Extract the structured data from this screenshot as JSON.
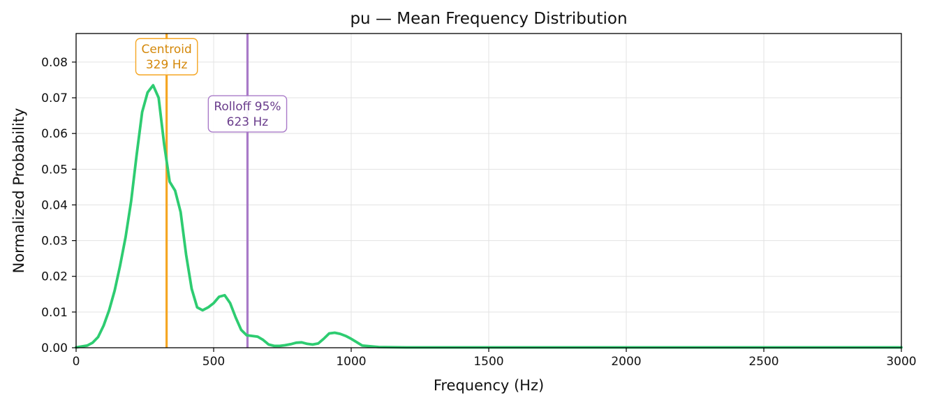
{
  "chart_data": {
    "type": "line",
    "title": "pu  —  Mean Frequency Distribution",
    "xlabel": "Frequency (Hz)",
    "ylabel": "Normalized Probability",
    "xlim": [
      0,
      3000
    ],
    "ylim": [
      0,
      0.088
    ],
    "grid": true,
    "x_ticks": [
      0,
      500,
      1000,
      1500,
      2000,
      2500,
      3000
    ],
    "x_tick_labels": [
      "0",
      "500",
      "1000",
      "1500",
      "2000",
      "2500",
      "3000"
    ],
    "y_ticks": [
      0,
      0.01,
      0.02,
      0.03,
      0.04,
      0.05,
      0.06,
      0.07,
      0.08
    ],
    "y_tick_labels": [
      "0.00",
      "0.01",
      "0.02",
      "0.03",
      "0.04",
      "0.05",
      "0.06",
      "0.07",
      "0.08"
    ],
    "series": [
      {
        "color": "#2ecc71",
        "x": [
          0,
          40,
          60,
          80,
          100,
          120,
          140,
          160,
          180,
          200,
          220,
          240,
          260,
          280,
          300,
          320,
          340,
          360,
          380,
          400,
          420,
          440,
          460,
          480,
          500,
          520,
          540,
          560,
          580,
          600,
          620,
          640,
          660,
          680,
          700,
          720,
          740,
          760,
          780,
          800,
          820,
          840,
          860,
          880,
          900,
          920,
          940,
          960,
          980,
          1000,
          1040,
          1100,
          1200,
          1500,
          2000,
          2500,
          3000
        ],
        "y": [
          0.0001,
          0.0006,
          0.0014,
          0.003,
          0.0062,
          0.0105,
          0.016,
          0.023,
          0.031,
          0.041,
          0.054,
          0.066,
          0.0715,
          0.0735,
          0.07,
          0.057,
          0.0465,
          0.044,
          0.038,
          0.026,
          0.0165,
          0.0113,
          0.0105,
          0.0113,
          0.0125,
          0.0143,
          0.0147,
          0.0125,
          0.0085,
          0.005,
          0.0035,
          0.0033,
          0.0031,
          0.0022,
          0.0009,
          0.0005,
          0.0005,
          0.0007,
          0.001,
          0.0014,
          0.0015,
          0.0011,
          0.0009,
          0.0012,
          0.0025,
          0.004,
          0.0042,
          0.0039,
          0.0033,
          0.0025,
          0.0006,
          0.0002,
          0.0001,
          0.0001,
          0.0001,
          0.0001,
          0.0001
        ]
      }
    ],
    "markers": [
      {
        "x": 329,
        "label_line1": "Centroid",
        "label_line2": "329 Hz",
        "color": "#f5a623",
        "text_color": "#d4880a",
        "label_y": 0.0815
      },
      {
        "x": 623,
        "label_line1": "Rolloff 95%",
        "label_line2": "623 Hz",
        "color": "#a97ac8",
        "text_color": "#6a3d8c",
        "label_y": 0.0655
      }
    ]
  }
}
